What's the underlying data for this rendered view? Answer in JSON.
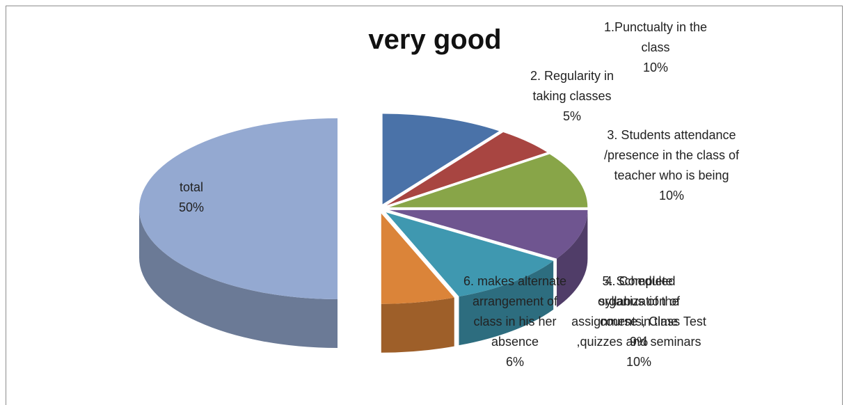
{
  "chart_data": {
    "type": "pie3d",
    "title": "very good",
    "categories": [
      "1.Punctualty in the class",
      "2. Regularity in taking classes",
      "3. Students attendance /presence in the class of teacher who is being",
      "4. Complete syllabus of the course in time",
      "5. Scheduled organization of assignments, Class Test ,quizzes and seminars",
      "6. makes alternate arrangement of class in his her absence",
      "total"
    ],
    "values": [
      10,
      5,
      10,
      9,
      10,
      6,
      50
    ],
    "value_labels": [
      "10%",
      "5%",
      "10%",
      "9%",
      "10%",
      "6%",
      "50%"
    ],
    "colors": [
      "#4a72a8",
      "#a84541",
      "#88a548",
      "#6f5590",
      "#3f98b0",
      "#db8439",
      "#94a9d1"
    ]
  }
}
